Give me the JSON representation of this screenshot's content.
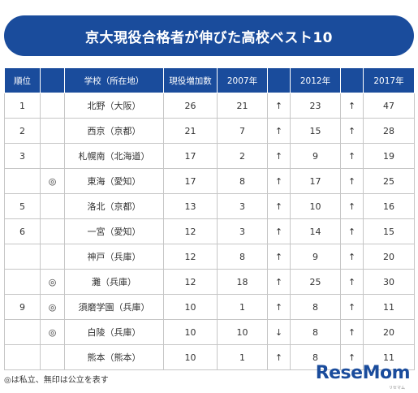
{
  "title": "京大現役合格者が伸びた高校ベスト10",
  "headers": [
    "順位",
    "",
    "学校（所在地）",
    "現役増加数",
    "2007年",
    "",
    "2012年",
    "",
    "2017年"
  ],
  "rows": [
    {
      "rank": "1",
      "mark": "",
      "school": "北野（大阪）",
      "increase": "26",
      "y2007": "21",
      "a1": "↑",
      "y2012": "23",
      "a2": "↑",
      "y2017": "47"
    },
    {
      "rank": "2",
      "mark": "",
      "school": "西京（京都）",
      "increase": "21",
      "y2007": "7",
      "a1": "↑",
      "y2012": "15",
      "a2": "↑",
      "y2017": "28"
    },
    {
      "rank": "3",
      "mark": "",
      "school": "札幌南（北海道）",
      "increase": "17",
      "y2007": "2",
      "a1": "↑",
      "y2012": "9",
      "a2": "↑",
      "y2017": "19"
    },
    {
      "rank": "",
      "mark": "◎",
      "school": "東海（愛知）",
      "increase": "17",
      "y2007": "8",
      "a1": "↑",
      "y2012": "17",
      "a2": "↑",
      "y2017": "25"
    },
    {
      "rank": "5",
      "mark": "",
      "school": "洛北（京都）",
      "increase": "13",
      "y2007": "3",
      "a1": "↑",
      "y2012": "10",
      "a2": "↑",
      "y2017": "16"
    },
    {
      "rank": "6",
      "mark": "",
      "school": "一宮（愛知）",
      "increase": "12",
      "y2007": "3",
      "a1": "↑",
      "y2012": "14",
      "a2": "↑",
      "y2017": "15"
    },
    {
      "rank": "",
      "mark": "",
      "school": "神戸（兵庫）",
      "increase": "12",
      "y2007": "8",
      "a1": "↑",
      "y2012": "9",
      "a2": "↑",
      "y2017": "20"
    },
    {
      "rank": "",
      "mark": "◎",
      "school": "灘（兵庫）",
      "increase": "12",
      "y2007": "18",
      "a1": "↑",
      "y2012": "25",
      "a2": "↑",
      "y2017": "30"
    },
    {
      "rank": "9",
      "mark": "◎",
      "school": "須磨学園（兵庫）",
      "increase": "10",
      "y2007": "1",
      "a1": "↑",
      "y2012": "8",
      "a2": "↑",
      "y2017": "11"
    },
    {
      "rank": "",
      "mark": "◎",
      "school": "白陵（兵庫）",
      "increase": "10",
      "y2007": "10",
      "a1": "↓",
      "y2012": "8",
      "a2": "↑",
      "y2017": "20"
    },
    {
      "rank": "",
      "mark": "",
      "school": "熊本（熊本）",
      "increase": "10",
      "y2007": "1",
      "a1": "↑",
      "y2012": "8",
      "a2": "↑",
      "y2017": "11"
    }
  ],
  "footnote": "◎は私立、無印は公立を表す",
  "logo": "ReseMom",
  "logo_sub": "リセマム"
}
